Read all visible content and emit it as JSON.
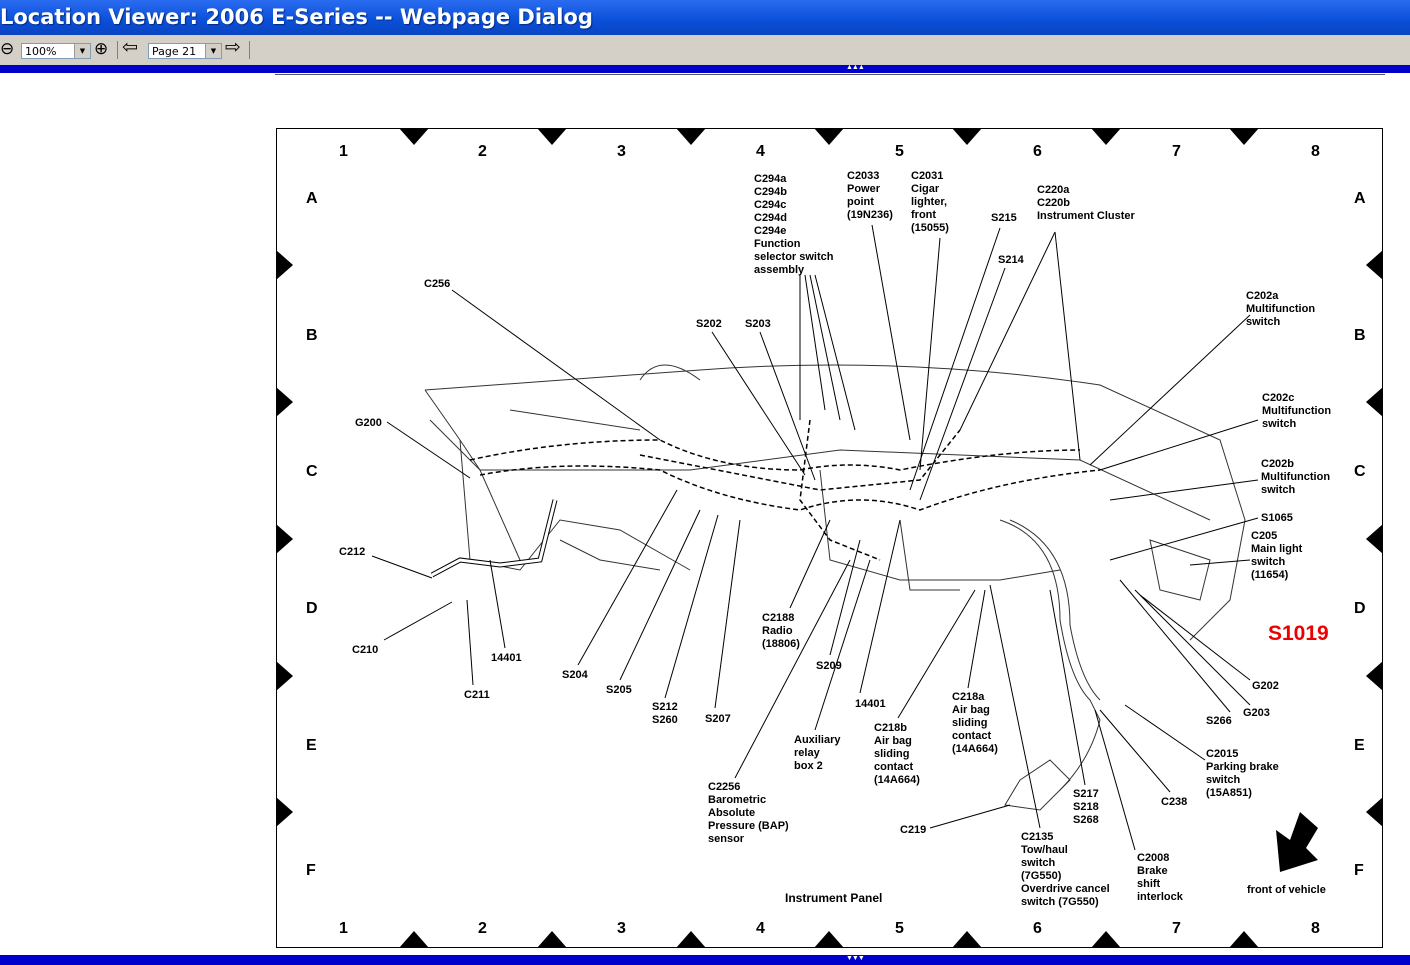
{
  "window": {
    "title": "Location Viewer: 2006 E-Series -- Webpage Dialog"
  },
  "toolbar": {
    "zoom_out_icon": "minus-circle-icon",
    "zoom_value": "100%",
    "zoom_in_icon": "plus-circle-icon",
    "prev_icon": "arrow-left-icon",
    "page_value": "Page 21",
    "next_icon": "arrow-right-icon"
  },
  "grid": {
    "columns": [
      "1",
      "2",
      "3",
      "4",
      "5",
      "6",
      "7",
      "8"
    ],
    "rows": [
      "A",
      "B",
      "C",
      "D",
      "E",
      "F"
    ]
  },
  "diagram": {
    "title": "Instrument Panel",
    "front_label": "front of vehicle",
    "highlight": {
      "text": "S1019",
      "color": "#e00000"
    },
    "labels": [
      "C256",
      "G200",
      "C212",
      "C210",
      "C211",
      "14401",
      "S204",
      "S205",
      "S212\nS260",
      "S207",
      "C2188\nRadio\n(18806)",
      "S209",
      "14401",
      "Auxiliary\nrelay\nbox 2",
      "C2256\nBarometric\nAbsolute\nPressure (BAP)\nsensor",
      "C218b\nAir bag\nsliding\ncontact\n(14A664)",
      "C218a\nAir bag\nsliding\ncontact\n(14A664)",
      "C219",
      "S217\nS218\nS268",
      "C2135\nTow/haul\nswitch\n(7G550)\nOverdrive cancel\nswitch (7G550)",
      "C2008\nBrake\nshift\ninterlock",
      "C238",
      "C2015\nParking brake\nswitch\n(15A851)",
      "S266",
      "G203",
      "G202",
      "C205\nMain light\nswitch\n(11654)",
      "S1065",
      "C202b\nMultifunction\nswitch",
      "C202c\nMultifunction\nswitch",
      "C202a\nMultifunction\nswitch",
      "C220a\nC220b\nInstrument Cluster",
      "S215",
      "S214",
      "C2031\nCigar\nlighter,\nfront\n(15055)",
      "C2033\nPower\npoint\n(19N236)",
      "C294a\nC294b\nC294c\nC294d\nC294e\nFunction\nselector switch\nassembly",
      "S202",
      "S203"
    ]
  }
}
